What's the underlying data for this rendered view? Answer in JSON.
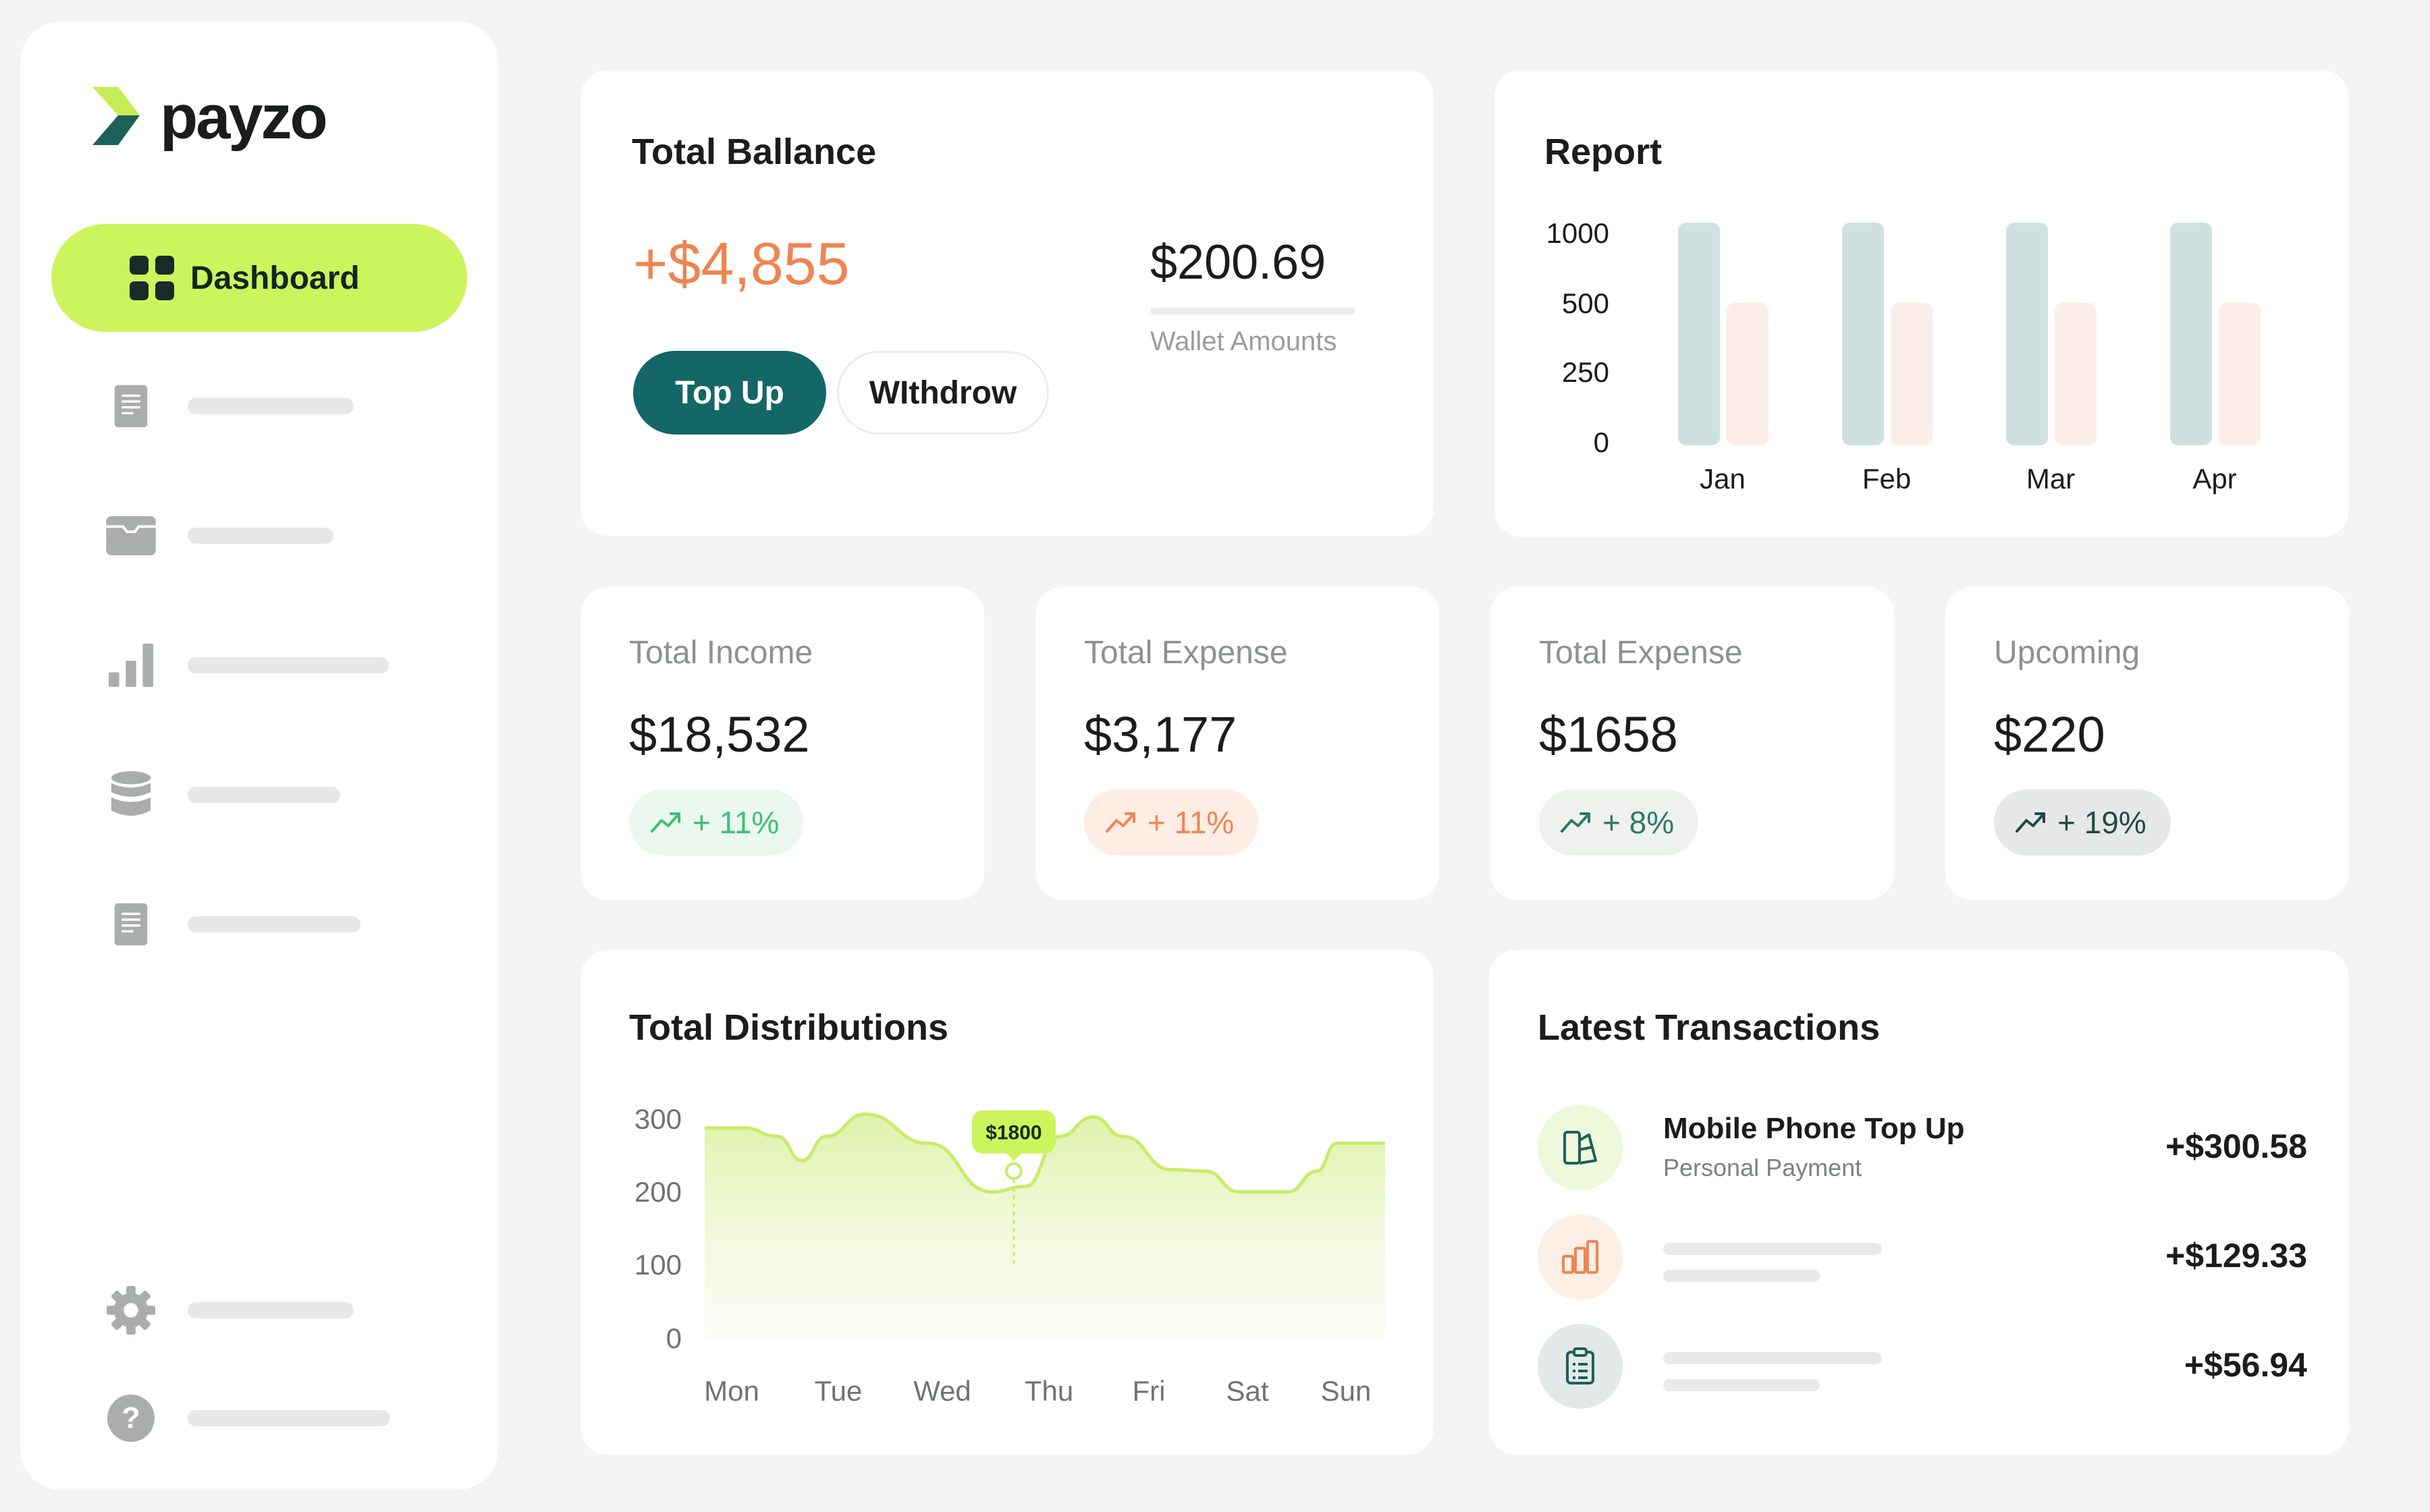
{
  "brand": {
    "name": "payzo",
    "accent": "#cdf35d",
    "primary": "#156666"
  },
  "sidebar": {
    "active_item": {
      "label": "Dashboard",
      "icon": "grid-icon"
    },
    "items": [
      {
        "icon": "document-icon"
      },
      {
        "icon": "wallet-icon"
      },
      {
        "icon": "bar-chart-icon"
      },
      {
        "icon": "database-icon"
      },
      {
        "icon": "document-icon"
      }
    ],
    "footer_items": [
      {
        "icon": "gear-icon"
      },
      {
        "icon": "help-icon"
      }
    ]
  },
  "balance": {
    "title": "Total Ballance",
    "amount": "+$4,855",
    "wallet_amount": "$200.69",
    "wallet_label": "Wallet Amounts",
    "topup_label": "Top Up",
    "withdraw_label": "WIthdrow"
  },
  "report": {
    "title": "Report",
    "chart_data": {
      "type": "bar",
      "categories": [
        "Jan",
        "Feb",
        "Mar",
        "Apr"
      ],
      "series": [
        {
          "values": [
            1000,
            1000,
            1000,
            1000
          ],
          "color": "#cfe0e1"
        },
        {
          "values": [
            640,
            640,
            640,
            640
          ],
          "color": "#fbeee8"
        }
      ],
      "y_ticks": [
        "1000",
        "500",
        "250",
        "0"
      ],
      "ylim": [
        0,
        1000
      ],
      "grid": false
    }
  },
  "stats": [
    {
      "label": "Total Income",
      "value": "$18,532",
      "badge": "+ 11%",
      "tone": "green"
    },
    {
      "label": "Total Expense",
      "value": "$3,177",
      "badge": "+ 11%",
      "tone": "orange"
    },
    {
      "label": "Total Expense",
      "value": "$1658",
      "badge": "+ 8%",
      "tone": "gray"
    },
    {
      "label": "Upcoming",
      "value": "$220",
      "badge": "+ 19%",
      "tone": "dark"
    }
  ],
  "distributions": {
    "title": "Total Distributions",
    "chart_data": {
      "type": "area",
      "categories": [
        "Mon",
        "Tue",
        "Wed",
        "Thu",
        "Fri",
        "Sat",
        "Sun"
      ],
      "curve_x": [
        0,
        0.4,
        0.75,
        1.0,
        1.25,
        1.65,
        2.3,
        2.95,
        3.3,
        3.65,
        4.0,
        4.3,
        4.8,
        5.15,
        5.5,
        6.0,
        6.3,
        6.5,
        7.0
      ],
      "curve_y": [
        302,
        302,
        290,
        255,
        290,
        322,
        280,
        210,
        218,
        290,
        318,
        290,
        242,
        240,
        210,
        210,
        240,
        280,
        280
      ],
      "y_ticks": [
        "300",
        "200",
        "100",
        "0"
      ],
      "ylim": [
        0,
        300
      ],
      "tooltip": {
        "label": "$1800",
        "x": 3.18,
        "y": 240
      },
      "color": "#c8ec6a"
    }
  },
  "transactions": {
    "title": "Latest Transactions",
    "items": [
      {
        "title": "Mobile Phone Top Up",
        "subtitle": "Personal Payment",
        "amount": "+$300.58",
        "icon": "phone-icon"
      },
      {
        "title": "",
        "subtitle": "",
        "amount": "+$129.33",
        "icon": "chart-icon"
      },
      {
        "title": "",
        "subtitle": "",
        "amount": "+$56.94",
        "icon": "clipboard-icon"
      }
    ]
  }
}
